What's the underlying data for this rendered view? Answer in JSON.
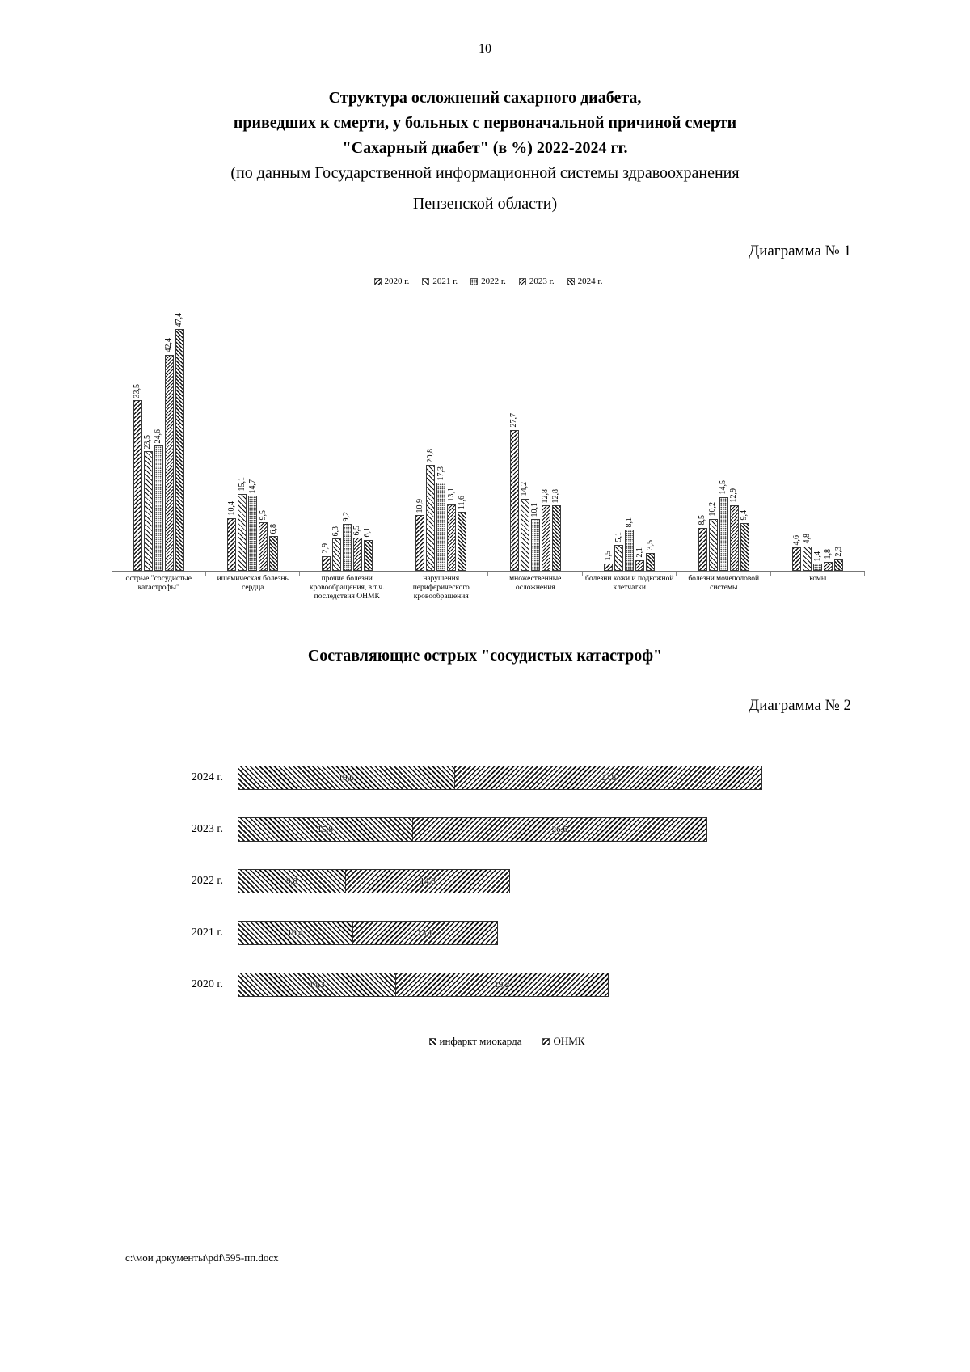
{
  "page": {
    "number": "10",
    "footer": "с:\\мои документы\\pdf\\595-пп.docx"
  },
  "title": {
    "line1": "Структура осложнений сахарного диабета,",
    "line2": "приведших к смерти, у больных с первоначальной причиной смерти",
    "line3": "\"Сахарный диабет\" (в %) 2022-2024 гг.",
    "line4": "(по данным Государственной информационной системы здравоохранения",
    "line5": "Пензенской области)"
  },
  "diagram1": {
    "caption": "Диаграмма № 1"
  },
  "section2": {
    "title": "Составляющие острых \"сосудистых катастроф\""
  },
  "diagram2": {
    "caption": "Диаграмма № 2"
  },
  "chart_data": [
    {
      "type": "bar",
      "orientation": "vertical-grouped",
      "title": "Структура осложнений сахарного диабета, приведших к смерти (в %)",
      "categories": [
        "острые \"сосудистые катастрофы\"",
        "ишемическая болезнь сердца",
        "прочие болезни кровообращения, в т.ч. последствия ОНМК",
        "нарушения периферического кровообращения",
        "множественные осложнения",
        "болезни кожи и подкожной клетчатки",
        "болезни мочеполовой системы",
        "комы"
      ],
      "series": [
        {
          "name": "2020 г.",
          "values": [
            33.5,
            10.4,
            2.9,
            10.9,
            27.7,
            1.5,
            8.5,
            4.6
          ]
        },
        {
          "name": "2021 г.",
          "values": [
            23.5,
            15.1,
            6.3,
            20.8,
            14.2,
            5.1,
            10.2,
            4.8
          ]
        },
        {
          "name": "2022 г.",
          "values": [
            24.6,
            14.7,
            9.2,
            17.3,
            10.1,
            8.1,
            14.5,
            1.4
          ]
        },
        {
          "name": "2023 г.",
          "values": [
            42.4,
            9.5,
            6.5,
            13.1,
            12.8,
            2.1,
            12.9,
            1.8
          ]
        },
        {
          "name": "2024 г.",
          "values": [
            47.4,
            6.8,
            6.1,
            11.6,
            12.8,
            3.5,
            9.4,
            2.3
          ]
        }
      ],
      "ylim": [
        0,
        50
      ],
      "grid": false,
      "legend_position": "top",
      "value_labels": "rotated-vertical, comma-decimal"
    },
    {
      "type": "bar",
      "orientation": "horizontal-stacked",
      "title": "Составляющие острых \"сосудистых катастроф\"",
      "categories": [
        "2024 г.",
        "2023 г.",
        "2022 г.",
        "2021 г.",
        "2020 г."
      ],
      "series": [
        {
          "name": "инфаркт миокарда",
          "values": [
            19.6,
            15.8,
            9.8,
            10.4,
            14.3
          ]
        },
        {
          "name": "ОНМК",
          "values": [
            27.8,
            26.6,
            14.8,
            13.1,
            19.2
          ]
        }
      ],
      "xlim": [
        0,
        50
      ],
      "grid": false,
      "legend_position": "bottom",
      "value_labels": "inside-segments, comma-decimal"
    }
  ]
}
